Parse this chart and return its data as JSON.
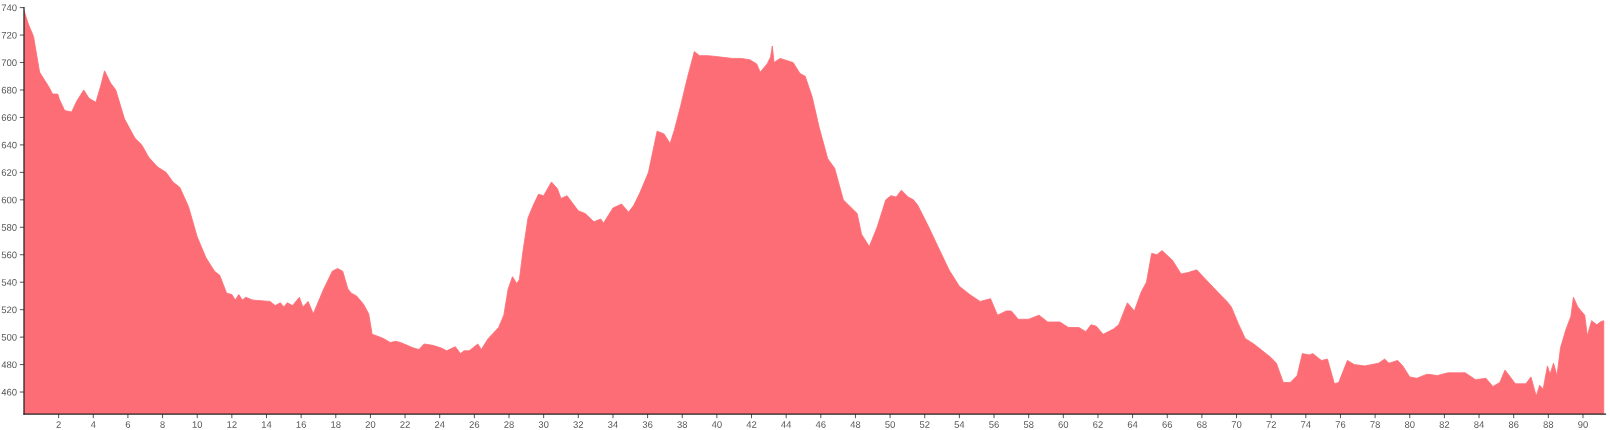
{
  "chart_data": {
    "type": "area",
    "color": "#fd6d76",
    "x": [
      0,
      0.25,
      0.55,
      0.9,
      1.15,
      1.45,
      1.65,
      1.95,
      2.05,
      2.35,
      2.75,
      3.05,
      3.45,
      3.75,
      4.15,
      4.45,
      4.65,
      5.0,
      5.3,
      5.8,
      6.4,
      6.8,
      7.2,
      7.7,
      8.2,
      8.6,
      9.0,
      9.5,
      10.0,
      10.5,
      11.0,
      11.3,
      11.7,
      12.0,
      12.2,
      12.4,
      12.6,
      12.8,
      13.2,
      14.2,
      14.5,
      14.8,
      15.0,
      15.2,
      15.5,
      15.9,
      16.1,
      16.4,
      16.7,
      17.3,
      17.8,
      18.1,
      18.4,
      18.7,
      18.9,
      19.2,
      19.6,
      19.9,
      20.1,
      20.35,
      20.75,
      21.15,
      21.45,
      21.75,
      22.5,
      22.8,
      23.1,
      23.6,
      24.1,
      24.4,
      24.9,
      25.2,
      25.4,
      25.7,
      26.2,
      26.4,
      26.8,
      27.4,
      27.7,
      27.95,
      28.2,
      28.45,
      28.6,
      28.8,
      29.1,
      29.4,
      29.7,
      30.0,
      30.45,
      30.8,
      31.0,
      31.35,
      32.0,
      32.4,
      32.9,
      33.3,
      33.45,
      34.0,
      34.5,
      34.9,
      35.2,
      35.55,
      36.05,
      36.55,
      36.95,
      37.3,
      37.55,
      37.9,
      38.3,
      38.7,
      39.0,
      39.5,
      40.2,
      40.9,
      41.4,
      41.9,
      42.3,
      42.5,
      42.9,
      43.1,
      43.2,
      43.3,
      43.65,
      44.4,
      44.8,
      45.1,
      45.5,
      45.9,
      46.4,
      46.8,
      47.3,
      47.7,
      48.1,
      48.35,
      48.8,
      49.25,
      49.75,
      50.05,
      50.35,
      50.65,
      51.05,
      51.35,
      51.6,
      52.2,
      52.8,
      53.4,
      54.0,
      54.6,
      55.2,
      55.8,
      56.2,
      56.7,
      57.0,
      57.4,
      58.0,
      58.6,
      59.1,
      59.8,
      60.3,
      60.9,
      61.3,
      61.6,
      61.9,
      62.3,
      62.9,
      63.2,
      63.7,
      64.1,
      64.5,
      64.8,
      65.1,
      65.4,
      65.7,
      66.3,
      66.8,
      67.2,
      67.7,
      68.3,
      68.9,
      69.45,
      69.7,
      70.1,
      70.5,
      71.0,
      71.5,
      72.0,
      72.3,
      72.7,
      73.1,
      73.5,
      73.8,
      74.2,
      74.4,
      74.9,
      75.25,
      75.65,
      75.9,
      76.4,
      76.8,
      77.4,
      77.8,
      78.2,
      78.55,
      78.8,
      79.3,
      79.6,
      80.0,
      80.4,
      81.0,
      81.6,
      82.2,
      83.2,
      83.8,
      84.4,
      84.8,
      85.2,
      85.5,
      86.1,
      86.7,
      87.0,
      87.3,
      87.5,
      87.7,
      87.95,
      88.1,
      88.3,
      88.5,
      88.7,
      89.0,
      89.3,
      89.45,
      89.7,
      90.1,
      90.25,
      90.5,
      90.8,
      91.0,
      91.2
    ],
    "values": [
      738,
      728,
      719,
      693,
      688,
      682,
      677,
      677,
      673,
      665,
      664,
      672,
      680,
      674,
      671,
      684,
      694,
      685,
      680,
      659,
      645,
      640,
      631,
      624,
      620,
      613,
      609,
      595,
      573,
      558,
      548,
      545,
      532,
      531,
      527,
      531,
      527,
      529,
      527,
      526,
      523,
      525,
      522,
      525,
      523,
      529,
      522,
      526,
      517,
      535,
      548,
      550,
      548,
      535,
      532,
      530,
      524,
      517,
      502,
      501,
      499,
      496,
      497,
      496,
      492,
      491,
      495,
      494,
      492,
      490,
      493,
      488,
      490,
      490,
      495,
      491,
      499,
      507,
      516,
      535,
      544,
      539,
      542,
      562,
      587,
      596,
      604,
      603,
      613,
      608,
      601,
      603,
      592,
      590,
      584,
      586,
      583,
      594,
      597,
      591,
      596,
      605,
      620,
      650,
      648,
      641,
      651,
      668,
      689,
      708,
      705,
      705,
      704,
      703,
      703,
      702,
      699,
      693,
      699,
      704,
      712,
      700,
      703,
      700,
      692,
      690,
      675,
      653,
      630,
      623,
      600,
      595,
      590,
      575,
      566,
      580,
      600,
      603,
      602,
      607,
      602,
      600,
      596,
      581,
      565,
      549,
      537,
      531,
      526,
      528,
      516,
      519,
      519,
      513,
      513,
      516,
      511,
      511,
      507,
      507,
      504,
      509,
      508,
      502,
      506,
      509,
      525,
      519,
      533,
      540,
      561,
      560,
      563,
      556,
      546,
      547,
      549,
      541,
      533,
      526,
      522,
      510,
      499,
      495,
      490,
      485,
      481,
      467,
      467,
      472,
      488,
      487,
      488,
      483,
      484,
      466,
      467,
      483,
      480,
      479,
      480,
      481,
      484,
      481,
      483,
      479,
      471,
      470,
      473,
      472,
      474,
      474,
      469,
      470,
      464,
      467,
      476,
      466,
      466,
      471,
      457,
      465,
      462,
      479,
      473,
      481,
      472,
      492,
      505,
      515,
      529,
      522,
      516,
      501,
      512,
      509,
      511,
      512
    ],
    "xlim": [
      0,
      91.3
    ],
    "ylim": [
      444,
      740
    ],
    "xticks": [
      2,
      4,
      6,
      8,
      10,
      12,
      14,
      16,
      18,
      20,
      22,
      24,
      26,
      28,
      30,
      32,
      34,
      36,
      38,
      40,
      42,
      44,
      46,
      48,
      50,
      52,
      54,
      56,
      58,
      60,
      62,
      64,
      66,
      68,
      70,
      72,
      74,
      76,
      78,
      80,
      82,
      84,
      86,
      88,
      90
    ],
    "yticks": [
      460,
      480,
      500,
      520,
      540,
      560,
      580,
      600,
      620,
      640,
      660,
      680,
      700,
      720,
      740
    ],
    "grid": false
  }
}
